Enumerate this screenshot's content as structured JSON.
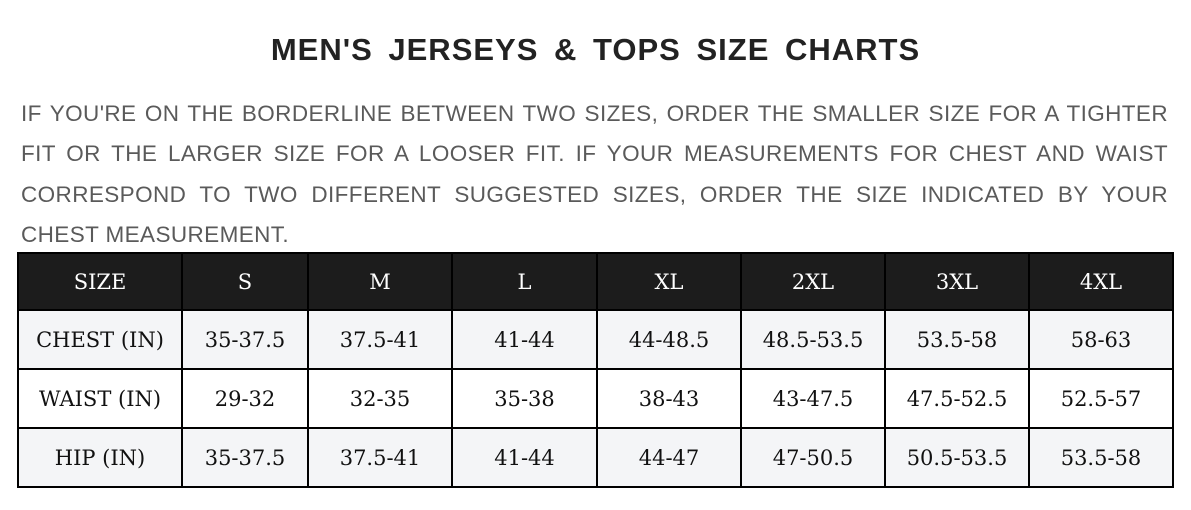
{
  "title": "MEN'S JERSEYS & TOPS SIZE CHARTS",
  "note": "IF YOU'RE ON THE BORDERLINE BETWEEN TWO SIZES, ORDER THE SMALLER SIZE FOR A TIGHTER FIT OR THE LARGER SIZE FOR A LOOSER FIT. IF YOUR MEASUREMENTS FOR CHEST AND WAIST CORRESPOND TO TWO DIFFERENT SUGGESTED SIZES, ORDER THE SIZE INDICATED BY YOUR CHEST MEASUREMENT.",
  "table": {
    "header": [
      "SIZE",
      "S",
      "M",
      "L",
      "XL",
      "2XL",
      "3XL",
      "4XL"
    ],
    "rows": [
      [
        "CHEST (IN)",
        "35-37.5",
        "37.5-41",
        "41-44",
        "44-48.5",
        "48.5-53.5",
        "53.5-58",
        "58-63"
      ],
      [
        "WAIST (IN)",
        "29-32",
        "32-35",
        "35-38",
        "38-43",
        "43-47.5",
        "47.5-52.5",
        "52.5-57"
      ],
      [
        "HIP (IN)",
        "35-37.5",
        "37.5-41",
        "41-44",
        "44-47",
        "47-50.5",
        "50.5-53.5",
        "53.5-58"
      ]
    ]
  },
  "colors": {
    "header_bg": "#1c1c1c",
    "alt_row_bg": "#f4f5f7",
    "note_text": "#5a5a5a"
  }
}
